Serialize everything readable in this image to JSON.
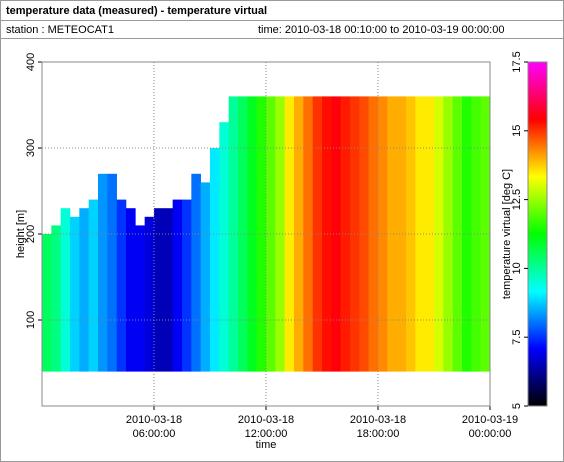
{
  "header": {
    "title": "temperature data (measured) - temperature virtual",
    "station": "station : METEOCAT1",
    "time": "time: 2010-03-18 00:10:00 to 2010-03-19 00:00:00"
  },
  "chart_data": {
    "type": "heatmap",
    "xlabel": "time",
    "ylabel": "height [m]",
    "colorbar_label": "temperature virtual [deg C]",
    "x": [
      0,
      0.5,
      1,
      1.5,
      2,
      2.5,
      3,
      3.5,
      4,
      4.5,
      5,
      5.5,
      6,
      6.5,
      7,
      7.5,
      8,
      8.5,
      9,
      9.5,
      10,
      10.5,
      11,
      11.5,
      12,
      12.5,
      13,
      13.5,
      14,
      14.5,
      15,
      15.5,
      16,
      16.5,
      17,
      17.5,
      18,
      18.5,
      19,
      19.5,
      20,
      20.5,
      21,
      21.5,
      22,
      22.5,
      23,
      23.5
    ],
    "values": [
      10.5,
      10.2,
      9.5,
      8.8,
      8.5,
      8.8,
      8.3,
      8,
      7.5,
      7,
      7,
      6.8,
      6.5,
      6.5,
      7,
      7.5,
      8,
      8.5,
      9,
      9.5,
      10,
      10.5,
      11,
      11.5,
      12,
      12.5,
      13.5,
      14,
      14.5,
      15,
      15.3,
      15.5,
      15.2,
      15,
      14.8,
      14.5,
      14.3,
      14,
      14,
      13.8,
      13.5,
      13.5,
      13,
      12.5,
      12,
      11.5,
      11.8,
      12
    ],
    "tops": [
      200,
      210,
      230,
      220,
      230,
      240,
      270,
      270,
      240,
      230,
      210,
      220,
      230,
      230,
      240,
      240,
      270,
      260,
      300,
      330,
      360,
      360,
      360,
      360,
      360,
      360,
      360,
      360,
      360,
      360,
      360,
      360,
      360,
      360,
      360,
      360,
      360,
      360,
      360,
      360,
      360,
      360,
      360,
      360,
      360,
      360,
      360,
      360
    ],
    "base_height": 40,
    "xlim": [
      0,
      24
    ],
    "xticks": [
      {
        "value": 6,
        "label": "2010-03-18 06:00:00"
      },
      {
        "value": 12,
        "label": "2010-03-18 12:00:00"
      },
      {
        "value": 18,
        "label": "2010-03-18 18:00:00"
      },
      {
        "value": 24,
        "label": "2010-03-19 00:00:00"
      }
    ],
    "ylim": [
      0,
      400
    ],
    "yticks": [
      100,
      200,
      300,
      400
    ],
    "zlim": [
      5,
      17.5
    ],
    "zticks": [
      5,
      7.5,
      10,
      12.5,
      15,
      17.5
    ],
    "colormap": [
      "#000000",
      "#0000ff",
      "#00ffff",
      "#00ff00",
      "#ffff00",
      "#ff0000",
      "#ff00ff"
    ],
    "grid": true
  }
}
